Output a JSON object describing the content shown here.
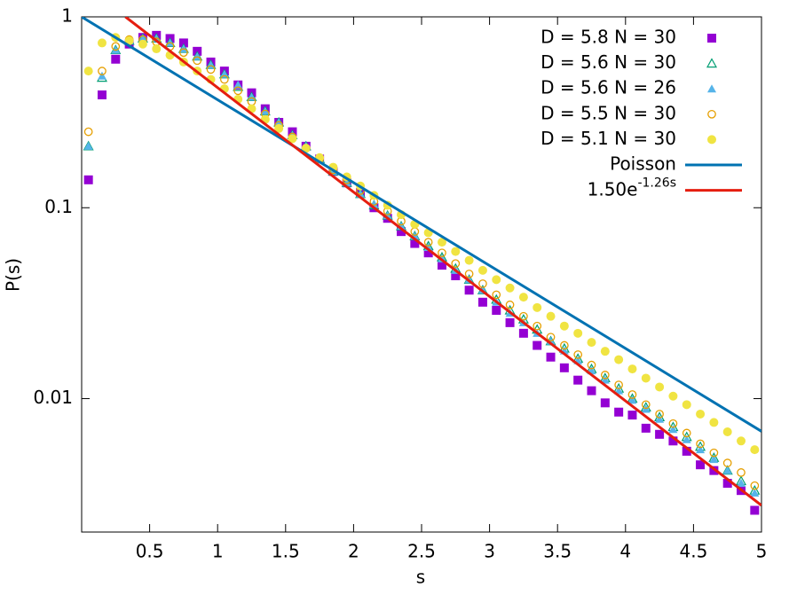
{
  "chart_data": {
    "type": "scatter",
    "x_label": "s",
    "y_label": "P(s)",
    "xlim": [
      0,
      5
    ],
    "ylim": [
      0.002,
      1
    ],
    "xticks": [
      0.5,
      1,
      1.5,
      2,
      2.5,
      3,
      3.5,
      4,
      4.5,
      5
    ],
    "yticks": [
      1,
      0.1,
      0.01
    ],
    "log_y": true,
    "grid": false,
    "legend": "top-right",
    "x": [
      0.05,
      0.15,
      0.25,
      0.35,
      0.45,
      0.55,
      0.65,
      0.75,
      0.85,
      0.95,
      1.05,
      1.15,
      1.25,
      1.35,
      1.45,
      1.55,
      1.65,
      1.75,
      1.85,
      1.95,
      2.05,
      2.15,
      2.25,
      2.35,
      2.45,
      2.55,
      2.65,
      2.75,
      2.85,
      2.95,
      3.05,
      3.15,
      3.25,
      3.35,
      3.45,
      3.55,
      3.65,
      3.75,
      3.85,
      3.95,
      4.05,
      4.15,
      4.25,
      4.35,
      4.45,
      4.55,
      4.65,
      4.75,
      4.85,
      4.95
    ],
    "series": [
      {
        "name": "D = 5.8 N = 30",
        "color": "#9400d3",
        "marker": "square-filled",
        "values": [
          0.14,
          0.39,
          0.6,
          0.72,
          0.78,
          0.8,
          0.77,
          0.73,
          0.66,
          0.58,
          0.52,
          0.44,
          0.4,
          0.33,
          0.28,
          0.25,
          0.21,
          0.18,
          0.155,
          0.135,
          0.12,
          0.1,
          0.088,
          0.075,
          0.065,
          0.058,
          0.05,
          0.044,
          0.037,
          0.032,
          0.029,
          0.025,
          0.022,
          0.019,
          0.0165,
          0.0145,
          0.0125,
          0.011,
          0.0095,
          0.0085,
          0.0082,
          0.007,
          0.0065,
          0.006,
          0.0053,
          0.0045,
          0.0042,
          0.0036,
          0.0033,
          0.0026
        ]
      },
      {
        "name": "D = 5.6 N = 30",
        "color": "#009e73",
        "marker": "triangle-open",
        "values": [
          0.21,
          0.48,
          0.67,
          0.75,
          0.77,
          0.77,
          0.73,
          0.68,
          0.62,
          0.56,
          0.5,
          0.43,
          0.38,
          0.32,
          0.28,
          0.24,
          0.21,
          0.18,
          0.155,
          0.135,
          0.118,
          0.103,
          0.091,
          0.08,
          0.071,
          0.063,
          0.055,
          0.048,
          0.042,
          0.037,
          0.033,
          0.029,
          0.026,
          0.023,
          0.02,
          0.0183,
          0.0162,
          0.0143,
          0.0128,
          0.0113,
          0.01,
          0.009,
          0.008,
          0.0071,
          0.0063,
          0.0056,
          0.0049,
          0.0042,
          0.0037,
          0.0033
        ]
      },
      {
        "name": "D = 5.6 N = 26",
        "color": "#56b4e9",
        "marker": "triangle-filled",
        "values": [
          0.21,
          0.49,
          0.67,
          0.75,
          0.77,
          0.77,
          0.73,
          0.68,
          0.62,
          0.56,
          0.5,
          0.44,
          0.38,
          0.32,
          0.28,
          0.24,
          0.21,
          0.18,
          0.155,
          0.135,
          0.118,
          0.104,
          0.091,
          0.08,
          0.071,
          0.062,
          0.054,
          0.047,
          0.042,
          0.037,
          0.032,
          0.028,
          0.025,
          0.022,
          0.02,
          0.0178,
          0.0158,
          0.014,
          0.0125,
          0.011,
          0.0098,
          0.0088,
          0.0078,
          0.0069,
          0.0061,
          0.0054,
          0.0048,
          0.0042,
          0.0036,
          0.0032
        ]
      },
      {
        "name": "D = 5.5 N = 30",
        "color": "#e69f00",
        "marker": "circle-open",
        "values": [
          0.25,
          0.52,
          0.7,
          0.76,
          0.76,
          0.74,
          0.7,
          0.65,
          0.59,
          0.53,
          0.47,
          0.41,
          0.36,
          0.31,
          0.27,
          0.235,
          0.205,
          0.18,
          0.158,
          0.14,
          0.123,
          0.108,
          0.096,
          0.085,
          0.075,
          0.066,
          0.058,
          0.051,
          0.045,
          0.04,
          0.035,
          0.031,
          0.027,
          0.024,
          0.021,
          0.019,
          0.017,
          0.015,
          0.0133,
          0.0118,
          0.0105,
          0.0093,
          0.0083,
          0.0074,
          0.0066,
          0.0058,
          0.0052,
          0.0046,
          0.0041,
          0.0035
        ]
      },
      {
        "name": "D = 5.1 N = 30",
        "color": "#f0e442",
        "marker": "circle-filled",
        "values": [
          0.52,
          0.73,
          0.78,
          0.75,
          0.72,
          0.68,
          0.63,
          0.58,
          0.52,
          0.47,
          0.42,
          0.37,
          0.33,
          0.29,
          0.26,
          0.23,
          0.205,
          0.183,
          0.163,
          0.145,
          0.13,
          0.116,
          0.103,
          0.092,
          0.082,
          0.074,
          0.066,
          0.059,
          0.053,
          0.047,
          0.042,
          0.038,
          0.034,
          0.03,
          0.027,
          0.024,
          0.022,
          0.0197,
          0.0177,
          0.016,
          0.0143,
          0.0128,
          0.0115,
          0.0103,
          0.0093,
          0.0083,
          0.0075,
          0.0067,
          0.006,
          0.0054
        ]
      },
      {
        "name": "Poisson",
        "color": "#0072b2",
        "marker": "line",
        "x": [
          0,
          5
        ],
        "values": [
          1,
          0.00674
        ]
      },
      {
        "name": [
          "1.50e",
          "-1.26s"
        ],
        "color": "#e51e10",
        "marker": "line",
        "x": [
          0.322,
          5
        ],
        "values": [
          1,
          0.00276
        ]
      }
    ]
  }
}
